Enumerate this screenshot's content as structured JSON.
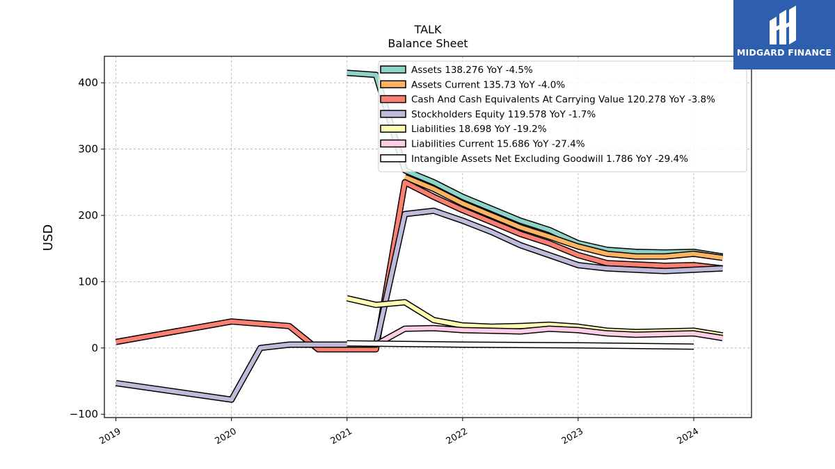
{
  "title": "TALK",
  "subtitle": "Balance  Sheet",
  "brand": {
    "name": "MIDGARD FINANCE",
    "color": "#2d5fae"
  },
  "chart_data": {
    "type": "line",
    "ylabel": "USD",
    "xlabel": "",
    "ylim": [
      -105,
      440
    ],
    "xlim": [
      2018.9,
      2024.5
    ],
    "yticks": [
      -100,
      0,
      100,
      200,
      300,
      400
    ],
    "yticklabels": [
      "−100",
      "0",
      "100",
      "200",
      "300",
      "400"
    ],
    "xticks": [
      2019,
      2020,
      2021,
      2022,
      2023,
      2024
    ],
    "xticklabels": [
      "2019",
      "2020",
      "2021",
      "2022",
      "2023",
      "2024"
    ],
    "grid": true,
    "legend_position": "top-right",
    "series": [
      {
        "name": "Assets",
        "legend": "Assets  138.276 YoY -4.5%",
        "color": "#8dd3c7",
        "points": [
          [
            2021.0,
            415
          ],
          [
            2021.25,
            412
          ],
          [
            2021.5,
            268
          ],
          [
            2021.75,
            250
          ],
          [
            2022.0,
            228
          ],
          [
            2022.25,
            210
          ],
          [
            2022.5,
            192
          ],
          [
            2022.75,
            178
          ],
          [
            2023.0,
            158
          ],
          [
            2023.25,
            148
          ],
          [
            2023.5,
            145
          ],
          [
            2023.75,
            144
          ],
          [
            2024.0,
            145
          ],
          [
            2024.25,
            138
          ]
        ]
      },
      {
        "name": "Assets Current",
        "legend": "Assets Current  135.73 YoY -4.0%",
        "color": "#fdb462",
        "points": [
          [
            2021.5,
            258
          ],
          [
            2021.75,
            240
          ],
          [
            2022.0,
            218
          ],
          [
            2022.25,
            200
          ],
          [
            2022.5,
            182
          ],
          [
            2022.75,
            168
          ],
          [
            2023.0,
            153
          ],
          [
            2023.25,
            142
          ],
          [
            2023.5,
            138
          ],
          [
            2023.75,
            138
          ],
          [
            2024.0,
            142
          ],
          [
            2024.25,
            136
          ]
        ]
      },
      {
        "name": "Cash And Cash Equivalents At Carrying Value",
        "legend": "Cash And Cash Equivalents At Carrying Value  120.278 YoY -3.8%",
        "color": "#fb8072",
        "points": [
          [
            2019.0,
            9
          ],
          [
            2020.0,
            40
          ],
          [
            2020.5,
            33
          ],
          [
            2020.75,
            -2
          ],
          [
            2021.25,
            -2
          ],
          [
            2021.5,
            250
          ],
          [
            2021.75,
            228
          ],
          [
            2022.0,
            208
          ],
          [
            2022.25,
            190
          ],
          [
            2022.5,
            172
          ],
          [
            2022.75,
            158
          ],
          [
            2023.0,
            140
          ],
          [
            2023.25,
            128
          ],
          [
            2023.5,
            126
          ],
          [
            2023.75,
            124
          ],
          [
            2024.0,
            125
          ],
          [
            2024.25,
            120
          ]
        ]
      },
      {
        "name": "Stockholders Equity",
        "legend": "Stockholders Equity  119.578 YoY -1.7%",
        "color": "#bebada",
        "points": [
          [
            2019.0,
            -53
          ],
          [
            2020.0,
            -78
          ],
          [
            2020.25,
            0
          ],
          [
            2020.5,
            5
          ],
          [
            2021.25,
            5
          ],
          [
            2021.5,
            202
          ],
          [
            2021.75,
            207
          ],
          [
            2022.0,
            192
          ],
          [
            2022.25,
            175
          ],
          [
            2022.5,
            155
          ],
          [
            2022.75,
            140
          ],
          [
            2023.0,
            125
          ],
          [
            2023.25,
            120
          ],
          [
            2023.5,
            118
          ],
          [
            2023.75,
            116
          ],
          [
            2024.0,
            118
          ],
          [
            2024.25,
            120
          ]
        ]
      },
      {
        "name": "Liabilities",
        "legend": "Liabilities  18.698 YoY -19.2%",
        "color": "#ffffb3",
        "points": [
          [
            2021.0,
            75
          ],
          [
            2021.25,
            65
          ],
          [
            2021.5,
            69
          ],
          [
            2021.75,
            42
          ],
          [
            2022.0,
            34
          ],
          [
            2022.25,
            32
          ],
          [
            2022.5,
            33
          ],
          [
            2022.75,
            35
          ],
          [
            2023.0,
            32
          ],
          [
            2023.25,
            26
          ],
          [
            2023.5,
            24
          ],
          [
            2023.75,
            25
          ],
          [
            2024.0,
            26
          ],
          [
            2024.25,
            19
          ]
        ]
      },
      {
        "name": "Liabilities Current",
        "legend": "Liabilities Current  15.686 YoY -27.4%",
        "color": "#fccde5",
        "points": [
          [
            2021.25,
            5
          ],
          [
            2021.5,
            29
          ],
          [
            2021.75,
            30
          ],
          [
            2022.0,
            27
          ],
          [
            2022.25,
            26
          ],
          [
            2022.5,
            25
          ],
          [
            2022.75,
            29
          ],
          [
            2023.0,
            27
          ],
          [
            2023.25,
            22
          ],
          [
            2023.5,
            20
          ],
          [
            2023.75,
            21
          ],
          [
            2024.0,
            22
          ],
          [
            2024.25,
            15
          ]
        ]
      },
      {
        "name": "Intangible Assets Net Excluding Goodwill",
        "legend": "Intangible Assets Net Excluding Goodwill  1.786 YoY -29.4%",
        "color": "#ffffff",
        "points": [
          [
            2021.0,
            7
          ],
          [
            2022.0,
            5
          ],
          [
            2023.0,
            4
          ],
          [
            2024.0,
            2
          ]
        ]
      }
    ]
  }
}
